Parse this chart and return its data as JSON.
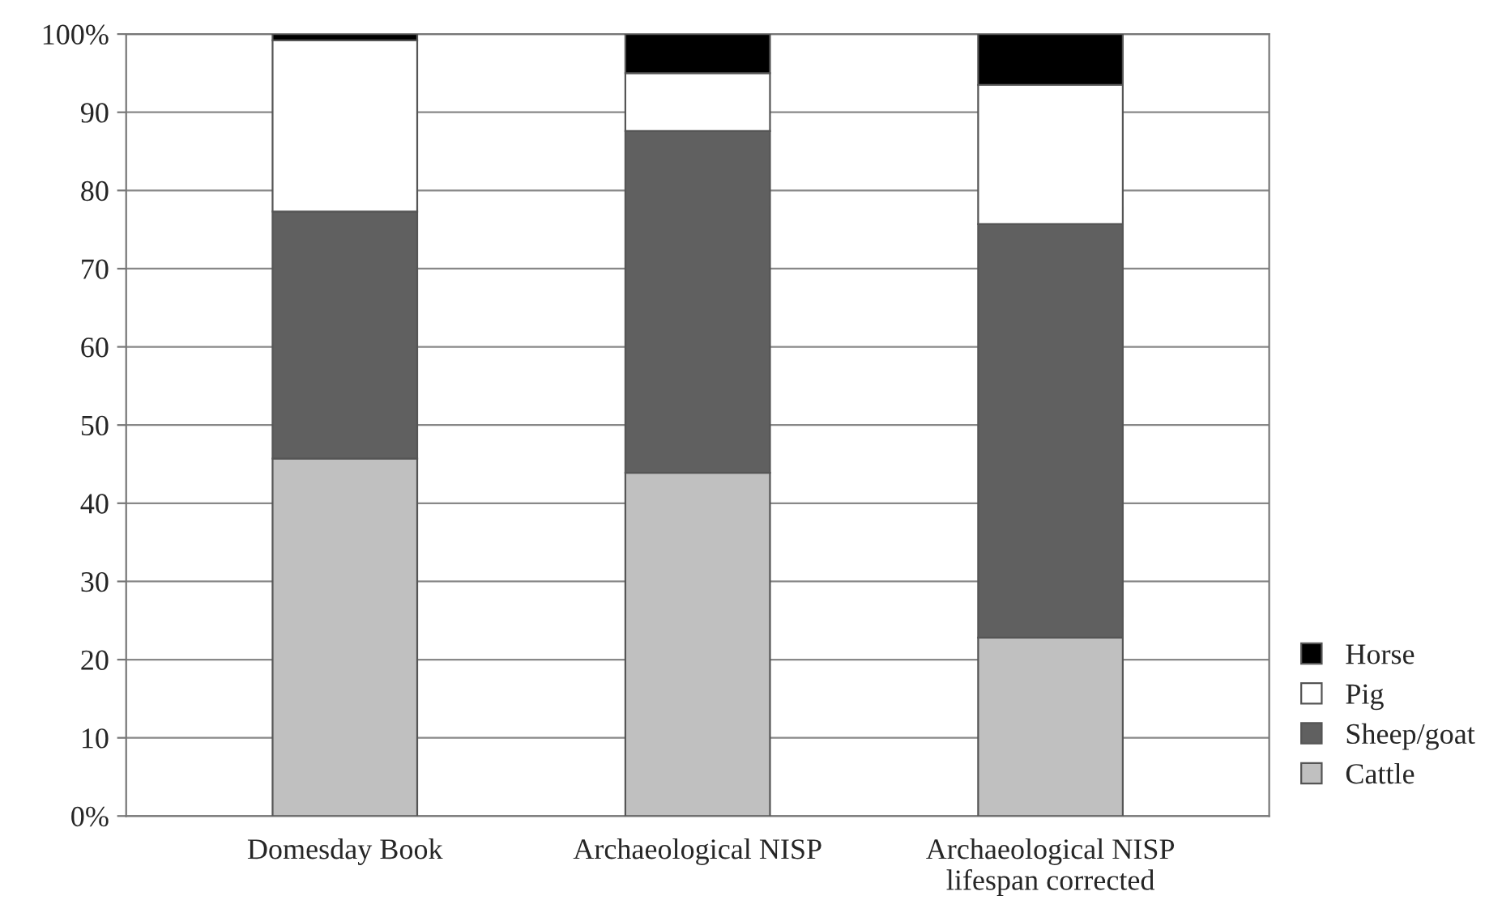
{
  "chart_data": {
    "type": "bar",
    "stacked": true,
    "categories": [
      "Domesday Book",
      "Archaeological NISP",
      "Archaeological NISP\nlifespan corrected"
    ],
    "series": [
      {
        "name": "Cattle",
        "color": "#c0c0c0",
        "values": [
          45.7,
          43.9,
          22.8
        ]
      },
      {
        "name": "Sheep/goat",
        "color": "#606060",
        "values": [
          31.6,
          43.7,
          52.9
        ]
      },
      {
        "name": "Pig",
        "color": "#ffffff",
        "values": [
          21.9,
          7.4,
          17.8
        ]
      },
      {
        "name": "Horse",
        "color": "#000000",
        "values": [
          0.8,
          5.0,
          6.5
        ]
      }
    ],
    "ylim": [
      0,
      100
    ],
    "yticks": [
      {
        "value": 0,
        "label": "0%"
      },
      10,
      20,
      30,
      40,
      50,
      60,
      70,
      80,
      90,
      {
        "value": 100,
        "label": "100%"
      }
    ],
    "grid": "y",
    "legend": "bottom right"
  }
}
